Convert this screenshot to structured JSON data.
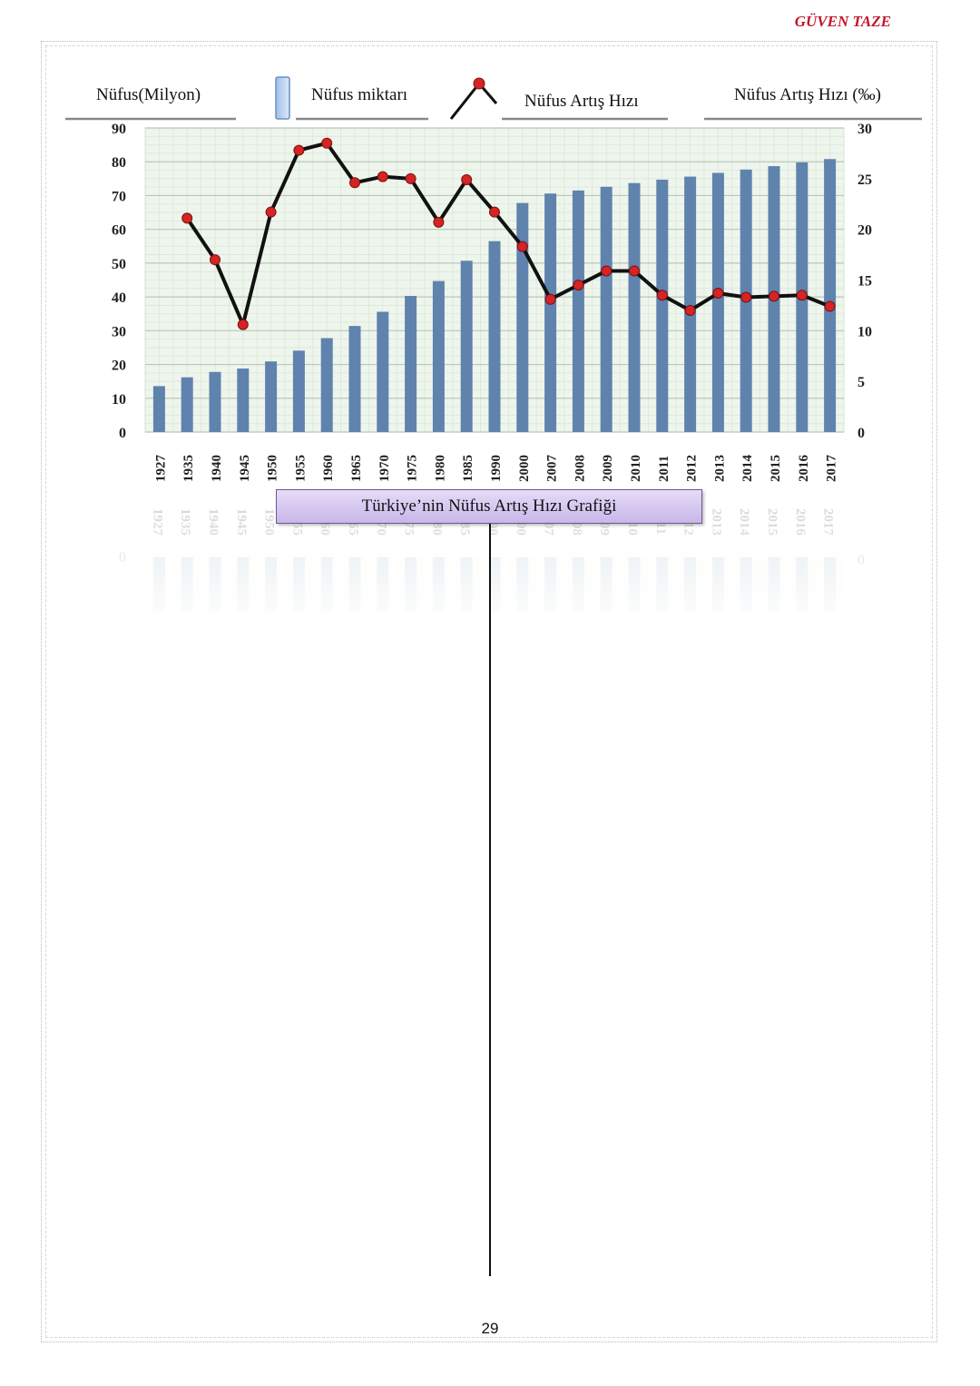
{
  "header": {
    "author": "GÜVEN TAZE"
  },
  "legend": {
    "left_axis_title": "Nüfus(Milyon)",
    "bar_label": "Nüfus miktarı",
    "line_label": "Nüfus Artış Hızı",
    "right_axis_title": "Nüfus Artış Hızı (‰)"
  },
  "caption": "Türkiye’nin Nüfus Artış Hızı Grafiği",
  "page_number": "29",
  "chart_data": {
    "type": "bar",
    "title": "Türkiye’nin Nüfus Artış Hızı Grafiği",
    "categories": [
      "1927",
      "1935",
      "1940",
      "1945",
      "1950",
      "1955",
      "1960",
      "1965",
      "1970",
      "1975",
      "1980",
      "1985",
      "1990",
      "2000",
      "2007",
      "2008",
      "2009",
      "2010",
      "2011",
      "2012",
      "2013",
      "2014",
      "2015",
      "2016",
      "2017"
    ],
    "series": [
      {
        "name": "Nüfus miktarı",
        "type": "bar",
        "axis": "left",
        "color": "#5f83ad",
        "values": [
          13.6,
          16.2,
          17.8,
          18.8,
          20.9,
          24.1,
          27.8,
          31.4,
          35.6,
          40.3,
          44.7,
          50.7,
          56.5,
          67.8,
          70.6,
          71.5,
          72.6,
          73.7,
          74.7,
          75.6,
          76.7,
          77.7,
          78.7,
          79.8,
          80.8
        ]
      },
      {
        "name": "Nüfus Artış Hızı",
        "type": "line",
        "axis": "right",
        "color": "#111111",
        "marker_color": "#d42424",
        "values": [
          null,
          21.1,
          17.0,
          10.6,
          21.7,
          27.8,
          28.5,
          24.6,
          25.2,
          25.0,
          20.7,
          24.9,
          21.7,
          18.3,
          13.1,
          14.5,
          15.9,
          15.9,
          13.5,
          12.0,
          13.7,
          13.3,
          13.4,
          13.5,
          12.4
        ]
      }
    ],
    "ylim_left": [
      0,
      90
    ],
    "yticks_left": [
      0,
      10,
      20,
      30,
      40,
      50,
      60,
      70,
      80,
      90
    ],
    "ylim_right": [
      0,
      30
    ],
    "yticks_right": [
      0,
      5,
      10,
      15,
      20,
      25,
      30
    ],
    "ylabel_left": "Nüfus(Milyon)",
    "ylabel_right": "Nüfus Artış Hızı (‰)",
    "grid": true,
    "legend_position": "top"
  },
  "colors": {
    "bar": "#5f83ad",
    "line": "#111111",
    "marker": "#d42424",
    "plot_background": "#eef5ec",
    "grid": "#cfdccf",
    "author": "#c0182a",
    "caption_background": "#d8caf2"
  }
}
